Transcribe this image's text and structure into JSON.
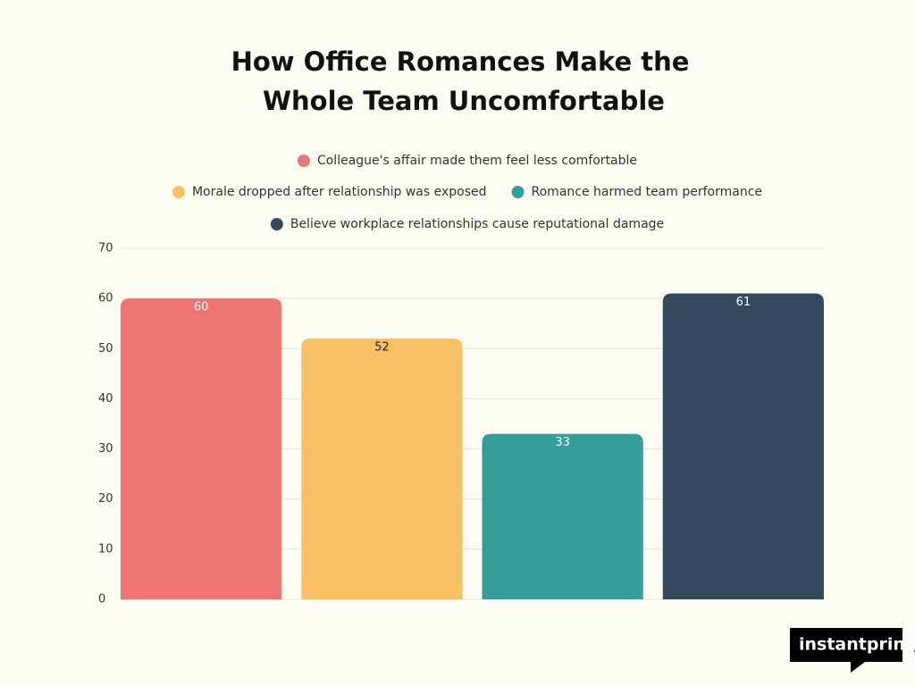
{
  "chart_data": {
    "type": "bar",
    "title": [
      "How Office Romances Make the",
      "Whole Team Uncomfortable"
    ],
    "series": [
      {
        "name": "Colleague's affair made them feel less comfortable",
        "color": "#ee7571",
        "values": [
          60
        ]
      },
      {
        "name": "Morale dropped after relationship was exposed",
        "color": "#f9c064",
        "values": [
          52
        ]
      },
      {
        "name": "Romance harmed team performance",
        "color": "#349e9a",
        "values": [
          33
        ]
      },
      {
        "name": "Believe workplace relationships cause reputational damage",
        "color": "#34495d",
        "values": [
          61
        ]
      }
    ],
    "ylim": [
      0,
      70
    ],
    "yticks": [
      0,
      10,
      20,
      30,
      40,
      50,
      60,
      70
    ],
    "grid": true
  },
  "logo": {
    "text": "instantprint"
  }
}
